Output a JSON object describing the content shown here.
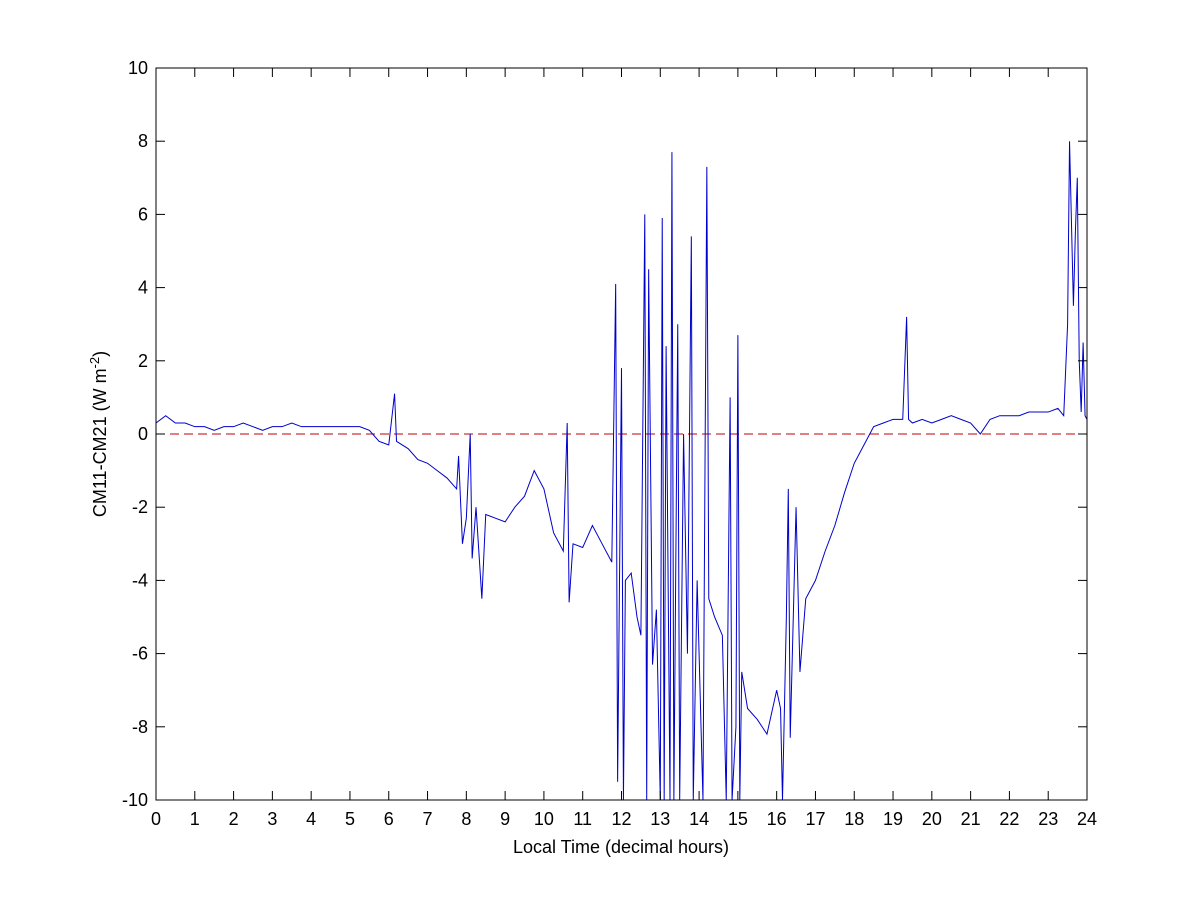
{
  "chart_data": {
    "type": "line",
    "x_label": "Local Time (decimal hours)",
    "y_label": "CM11-CM21 (W m",
    "y_label_exponent": "-2",
    "y_label_close": ")",
    "xlim": [
      0,
      24
    ],
    "ylim": [
      -10,
      10
    ],
    "xticks": [
      0,
      1,
      2,
      3,
      4,
      5,
      6,
      7,
      8,
      9,
      10,
      11,
      12,
      13,
      14,
      15,
      16,
      17,
      18,
      19,
      20,
      21,
      22,
      23,
      24
    ],
    "yticks": [
      -10,
      -8,
      -6,
      -4,
      -2,
      0,
      2,
      4,
      6,
      8,
      10
    ],
    "reference_line": {
      "y": 0,
      "color": "#c00000",
      "style": "dashed"
    },
    "series": [
      {
        "color": "#0000cc",
        "x": [
          0,
          0.25,
          0.5,
          0.75,
          1,
          1.25,
          1.5,
          1.75,
          2,
          2.25,
          2.5,
          2.75,
          3,
          3.25,
          3.5,
          3.75,
          4,
          4.25,
          4.5,
          4.75,
          5,
          5.25,
          5.5,
          5.75,
          6,
          6.15,
          6.2,
          6.5,
          6.75,
          7,
          7.25,
          7.5,
          7.75,
          7.8,
          7.9,
          8,
          8.1,
          8.15,
          8.25,
          8.4,
          8.5,
          8.75,
          9,
          9.25,
          9.5,
          9.75,
          10,
          10.25,
          10.5,
          10.6,
          10.65,
          10.75,
          11,
          11.25,
          11.5,
          11.75,
          11.85,
          11.9,
          12,
          12.05,
          12.1,
          12.25,
          12.4,
          12.5,
          12.6,
          12.65,
          12.7,
          12.8,
          12.9,
          13.0,
          13.05,
          13.1,
          13.15,
          13.25,
          13.3,
          13.35,
          13.45,
          13.5,
          13.6,
          13.7,
          13.8,
          13.85,
          13.95,
          14.1,
          14.2,
          14.25,
          14.4,
          14.6,
          14.7,
          14.8,
          14.85,
          14.95,
          15.0,
          15.05,
          15.1,
          15.25,
          15.5,
          15.75,
          16,
          16.1,
          16.15,
          16.25,
          16.3,
          16.35,
          16.5,
          16.6,
          16.75,
          17,
          17.25,
          17.5,
          17.75,
          18,
          18.25,
          18.5,
          18.75,
          19,
          19.25,
          19.35,
          19.4,
          19.5,
          19.75,
          20,
          20.25,
          20.5,
          20.75,
          21,
          21.25,
          21.5,
          21.75,
          22,
          22.25,
          22.5,
          22.75,
          23,
          23.25,
          23.4,
          23.5,
          23.55,
          23.65,
          23.7,
          23.75,
          23.8,
          23.85,
          23.9,
          23.95,
          24
        ],
        "values": [
          0.3,
          0.5,
          0.3,
          0.3,
          0.2,
          0.2,
          0.1,
          0.2,
          0.2,
          0.3,
          0.2,
          0.1,
          0.2,
          0.2,
          0.3,
          0.2,
          0.2,
          0.2,
          0.2,
          0.2,
          0.2,
          0.2,
          0.1,
          -0.2,
          -0.3,
          1.1,
          -0.2,
          -0.4,
          -0.7,
          -0.8,
          -1.0,
          -1.2,
          -1.5,
          -0.6,
          -3.0,
          -2.3,
          0.0,
          -3.4,
          -2.0,
          -4.5,
          -2.2,
          -2.3,
          -2.4,
          -2.0,
          -1.7,
          -1.0,
          -1.5,
          -2.7,
          -3.2,
          0.3,
          -4.6,
          -3.0,
          -3.1,
          -2.5,
          -3.0,
          -3.5,
          4.1,
          -9.5,
          1.8,
          -10,
          -4.0,
          -3.8,
          -5.0,
          -5.5,
          6.0,
          -10,
          4.5,
          -6.3,
          -4.8,
          -10,
          5.9,
          -10,
          2.4,
          -10,
          7.7,
          -10,
          3.0,
          -10,
          0.0,
          -6.0,
          5.4,
          -10,
          -4.0,
          -10,
          7.3,
          -4.5,
          -5.0,
          -5.5,
          -10,
          1.0,
          -10,
          -8.0,
          2.7,
          -10,
          -6.5,
          -7.5,
          -7.8,
          -8.2,
          -7.0,
          -7.5,
          -10,
          -5.0,
          -1.5,
          -8.3,
          -2.0,
          -6.5,
          -4.5,
          -4.0,
          -3.2,
          -2.5,
          -1.6,
          -0.8,
          -0.3,
          0.2,
          0.3,
          0.4,
          0.4,
          3.2,
          0.4,
          0.3,
          0.4,
          0.3,
          0.4,
          0.5,
          0.4,
          0.3,
          0.0,
          0.4,
          0.5,
          0.5,
          0.5,
          0.6,
          0.6,
          0.6,
          0.7,
          0.5,
          3.0,
          8.0,
          3.5,
          5.5,
          7.0,
          2.0,
          0.6,
          2.5,
          0.5,
          0.4
        ]
      }
    ]
  }
}
